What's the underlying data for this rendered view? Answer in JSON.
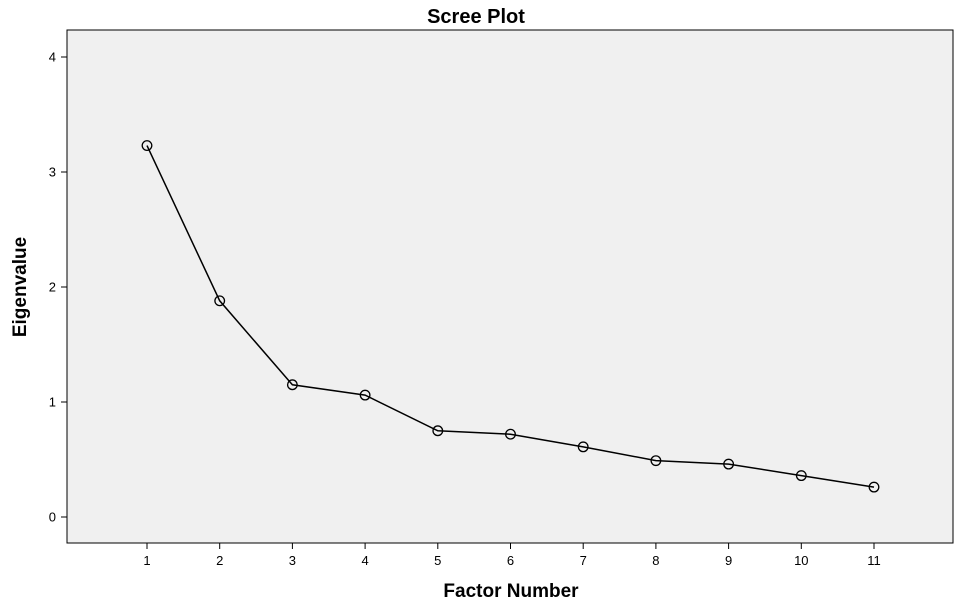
{
  "chart_data": {
    "type": "line",
    "title": "Scree Plot",
    "xlabel": "Factor Number",
    "ylabel": "Eigenvalue",
    "x": [
      1,
      2,
      3,
      4,
      5,
      6,
      7,
      8,
      9,
      10,
      11
    ],
    "y": [
      3.23,
      1.88,
      1.15,
      1.06,
      0.75,
      0.72,
      0.61,
      0.49,
      0.46,
      0.36,
      0.26
    ],
    "xlim": [
      0,
      12
    ],
    "ylim": [
      0,
      4
    ],
    "x_ticks": [
      "1",
      "2",
      "3",
      "4",
      "5",
      "6",
      "7",
      "8",
      "9",
      "10",
      "11"
    ],
    "y_ticks": [
      "0",
      "1",
      "2",
      "3",
      "4"
    ],
    "grid": false,
    "marker": "open-circle",
    "colors": {
      "plot_background": "#f0f0f0",
      "line": "#000000"
    }
  }
}
